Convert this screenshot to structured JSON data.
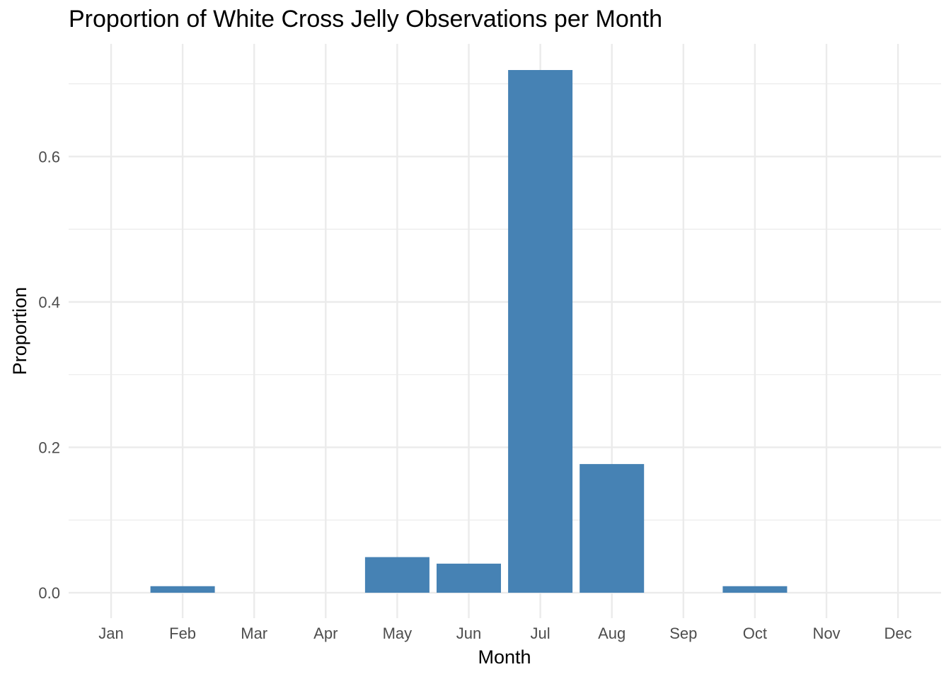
{
  "chart_data": {
    "type": "bar",
    "title": "Proportion of White Cross Jelly Observations per Month",
    "xlabel": "Month",
    "ylabel": "Proportion",
    "categories": [
      "Jan",
      "Feb",
      "Mar",
      "Apr",
      "May",
      "Jun",
      "Jul",
      "Aug",
      "Sep",
      "Oct",
      "Nov",
      "Dec"
    ],
    "values": [
      0,
      0.009,
      0,
      0,
      0.049,
      0.04,
      0.719,
      0.177,
      0,
      0.009,
      0,
      0
    ],
    "ylim": [
      -0.035,
      0.755
    ],
    "yticks": [
      0.0,
      0.2,
      0.4,
      0.6
    ],
    "ytick_labels": [
      "0.0",
      "0.2",
      "0.4",
      "0.6"
    ],
    "grid": true,
    "bar_color": "#4682B4",
    "grid_color": "#EBEBEB"
  }
}
